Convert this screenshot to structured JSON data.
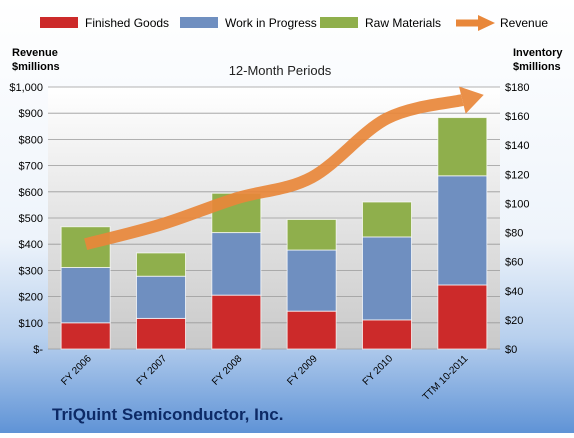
{
  "chart_data": {
    "type": "bar",
    "stacked": true,
    "title": "12-Month Periods",
    "left_axis_label_line1": "Revenue",
    "left_axis_label_line2": "$millions",
    "right_axis_label_line1": "Inventory",
    "right_axis_label_line2": "$millions",
    "company": "TriQuint Semiconductor, Inc.",
    "categories": [
      "FY 2006",
      "FY 2007",
      "FY 2008",
      "FY 2009",
      "FY 2010",
      "TTM 10-2011"
    ],
    "series": [
      {
        "name": "Finished Goods",
        "color": "#cc2a2a",
        "axis": "right",
        "values": [
          18,
          21,
          37,
          26,
          20,
          44
        ]
      },
      {
        "name": "Work in Progress",
        "color": "#6f8fc0",
        "axis": "right",
        "values": [
          38,
          29,
          43,
          42,
          57,
          75
        ]
      },
      {
        "name": "Raw Materials",
        "color": "#8faf4c",
        "axis": "right",
        "values": [
          28,
          16,
          27,
          21,
          24,
          40
        ]
      }
    ],
    "line_series": {
      "name": "Revenue",
      "color": "#e8873a",
      "axis": "left",
      "values": [
        400,
        475,
        575,
        655,
        880,
        950
      ]
    },
    "left_axis": {
      "min": 0,
      "max": 1000,
      "step": 100,
      "tick_labels": [
        "$-",
        "$100",
        "$200",
        "$300",
        "$400",
        "$500",
        "$600",
        "$700",
        "$800",
        "$900",
        "$1,000"
      ]
    },
    "right_axis": {
      "min": 0,
      "max": 180,
      "step": 20,
      "tick_labels": [
        "$0",
        "$20",
        "$40",
        "$60",
        "$80",
        "$100",
        "$120",
        "$140",
        "$160",
        "$180"
      ]
    },
    "legend": {
      "placement": "top"
    }
  }
}
